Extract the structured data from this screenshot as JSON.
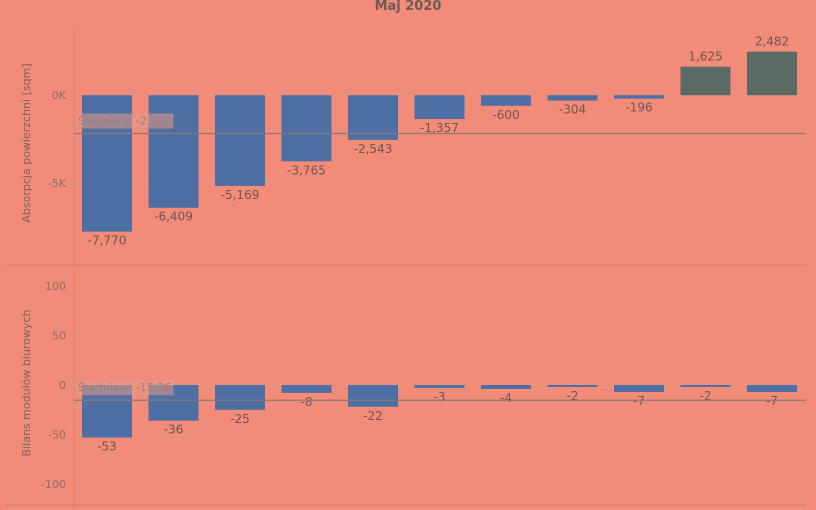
{
  "chart_data": [
    {
      "type": "bar",
      "title": "Maj 2020",
      "ylabel": "Absorpcja powierzchni [sqm]",
      "ylim": [
        -9500,
        4000
      ],
      "yticks": [
        0,
        -5000
      ],
      "ytick_labels": [
        "0K",
        "-5K"
      ],
      "values": [
        -7770,
        -6409,
        -5169,
        -3765,
        -2543,
        -1357,
        -600,
        -304,
        -196,
        1625,
        2482
      ],
      "value_labels": [
        "-7,770",
        "-6,409",
        "-5,169",
        "-3,765",
        "-2,543",
        "-1,357",
        "-600",
        "-304",
        "-196",
        "1,625",
        "2,482"
      ],
      "average": -2182,
      "average_label": "Średnia = -2,182",
      "colors": {
        "negative": "#4e6fa3",
        "positive": "#5a6b66",
        "average_line": "#8c7777"
      }
    },
    {
      "type": "bar",
      "ylabel": "Bilans modułów biurowych",
      "ylim": [
        -118,
        118
      ],
      "yticks": [
        100,
        50,
        0,
        -50,
        -100
      ],
      "ytick_labels": [
        "100",
        "50",
        "0",
        "-50",
        "-100"
      ],
      "values": [
        -53,
        -36,
        -25,
        -8,
        -22,
        -3,
        -4,
        -2,
        -7,
        -2,
        -7
      ],
      "value_labels": [
        "-53",
        "-36",
        "-25",
        "-8",
        "-22",
        "-3",
        "-4",
        "-2",
        "-7",
        "-2",
        "-7"
      ],
      "average": -15.36,
      "average_label": "Średnia = -15.36",
      "colors": {
        "negative": "#4e6fa3",
        "average_line": "#8c7777"
      }
    }
  ]
}
